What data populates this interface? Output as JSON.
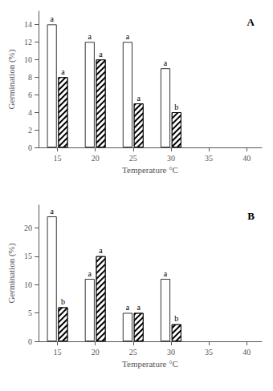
{
  "chart_data": [
    {
      "type": "bar",
      "title": "A",
      "xlabel": "Temperature °C",
      "ylabel": "Germination (%)",
      "x": [
        15,
        20,
        25,
        30
      ],
      "series": [
        {
          "color": "white",
          "values": [
            14,
            12,
            12,
            9
          ],
          "annotations": [
            "a",
            "a",
            "a",
            "a"
          ]
        },
        {
          "color": "white",
          "values": [
            8,
            10,
            5,
            4
          ],
          "annotations": [
            "a",
            "a",
            "a",
            "b"
          ]
        }
      ],
      "xlim": [
        12.5,
        42
      ],
      "xticks": [
        15,
        20,
        25,
        30,
        35,
        40
      ],
      "ylim": [
        0,
        15.5
      ],
      "yticks": [
        0,
        2,
        4,
        6,
        8,
        10,
        12,
        14
      ],
      "grid": false
    },
    {
      "type": "bar",
      "title": "B",
      "xlabel": "Temperature °C",
      "ylabel": "Germination (%)",
      "x": [
        15,
        20,
        25,
        30
      ],
      "series": [
        {
          "color": "white",
          "values": [
            22,
            11,
            5,
            11
          ],
          "annotations": [
            "a",
            "a",
            "a",
            "a"
          ]
        },
        {
          "color": "white",
          "values": [
            6,
            15,
            5,
            3
          ],
          "annotations": [
            "b",
            "a",
            "a",
            "b"
          ]
        }
      ],
      "xlim": [
        12.5,
        42
      ],
      "xticks": [
        15,
        20,
        25,
        30,
        35,
        40
      ],
      "ylim": [
        0,
        24
      ],
      "yticks": [
        0,
        5,
        10,
        15,
        20
      ],
      "grid": false
    }
  ]
}
